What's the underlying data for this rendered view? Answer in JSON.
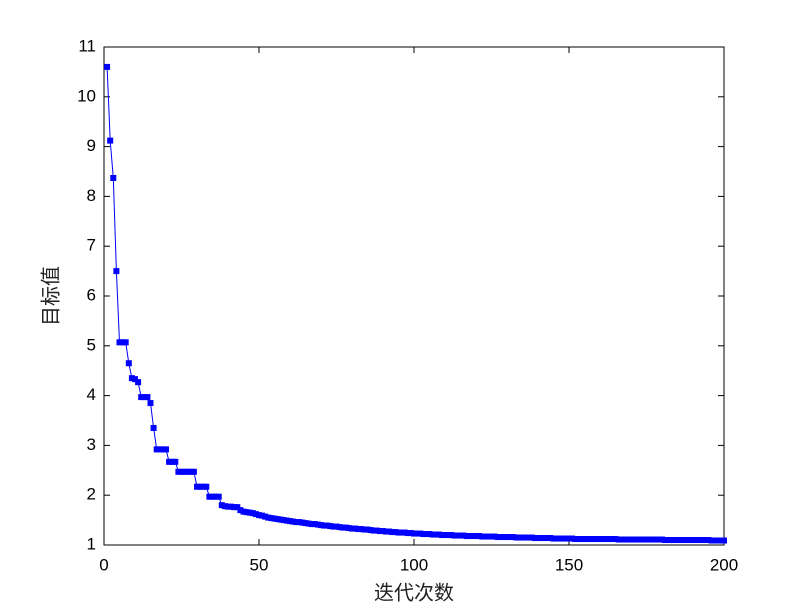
{
  "chart_data": {
    "type": "line",
    "xlabel": "迭代次数",
    "ylabel": "目标值",
    "color": "#0000ff",
    "x": [
      1,
      2,
      3,
      4,
      5,
      6,
      7,
      8,
      9,
      10,
      11,
      12,
      13,
      14,
      15,
      16,
      17,
      18,
      19,
      20,
      21,
      22,
      23,
      24,
      25,
      26,
      27,
      28,
      29,
      30,
      31,
      32,
      33,
      34,
      35,
      36,
      37,
      38,
      39,
      40,
      41,
      42,
      43,
      44,
      45,
      46,
      47,
      48,
      49,
      50,
      51,
      52,
      53,
      54,
      55,
      56,
      57,
      58,
      59,
      60,
      61,
      62,
      63,
      64,
      65,
      66,
      67,
      68,
      69,
      70,
      71,
      72,
      73,
      74,
      75,
      76,
      77,
      78,
      79,
      80,
      81,
      82,
      83,
      84,
      85,
      86,
      87,
      88,
      89,
      90,
      91,
      92,
      93,
      94,
      95,
      96,
      97,
      98,
      99,
      100,
      101,
      102,
      103,
      104,
      105,
      106,
      107,
      108,
      109,
      110,
      111,
      112,
      113,
      114,
      115,
      116,
      117,
      118,
      119,
      120,
      121,
      122,
      123,
      124,
      125,
      126,
      127,
      128,
      129,
      130,
      131,
      132,
      133,
      134,
      135,
      136,
      137,
      138,
      139,
      140,
      141,
      142,
      143,
      144,
      145,
      146,
      147,
      148,
      149,
      150,
      151,
      152,
      153,
      154,
      155,
      156,
      157,
      158,
      159,
      160,
      161,
      162,
      163,
      164,
      165,
      166,
      167,
      168,
      169,
      170,
      171,
      172,
      173,
      174,
      175,
      176,
      177,
      178,
      179,
      180,
      181,
      182,
      183,
      184,
      185,
      186,
      187,
      188,
      189,
      190,
      191,
      192,
      193,
      194,
      195,
      196,
      197,
      198,
      199,
      200
    ],
    "values": [
      10.6,
      9.12,
      8.37,
      6.5,
      5.07,
      5.07,
      5.07,
      4.65,
      4.35,
      4.33,
      4.27,
      3.97,
      3.97,
      3.97,
      3.85,
      3.35,
      2.92,
      2.92,
      2.92,
      2.92,
      2.67,
      2.67,
      2.67,
      2.47,
      2.47,
      2.47,
      2.47,
      2.47,
      2.47,
      2.17,
      2.17,
      2.17,
      2.17,
      1.97,
      1.97,
      1.97,
      1.97,
      1.8,
      1.78,
      1.77,
      1.77,
      1.76,
      1.76,
      1.7,
      1.67,
      1.66,
      1.65,
      1.64,
      1.62,
      1.6,
      1.59,
      1.57,
      1.55,
      1.54,
      1.53,
      1.52,
      1.51,
      1.5,
      1.49,
      1.48,
      1.47,
      1.46,
      1.46,
      1.45,
      1.44,
      1.43,
      1.42,
      1.42,
      1.41,
      1.4,
      1.39,
      1.39,
      1.38,
      1.37,
      1.37,
      1.36,
      1.35,
      1.35,
      1.34,
      1.33,
      1.33,
      1.32,
      1.32,
      1.31,
      1.31,
      1.3,
      1.29,
      1.29,
      1.28,
      1.28,
      1.27,
      1.27,
      1.26,
      1.26,
      1.25,
      1.25,
      1.25,
      1.24,
      1.24,
      1.23,
      1.23,
      1.23,
      1.22,
      1.22,
      1.22,
      1.21,
      1.21,
      1.21,
      1.2,
      1.2,
      1.2,
      1.2,
      1.19,
      1.19,
      1.19,
      1.19,
      1.18,
      1.18,
      1.18,
      1.18,
      1.18,
      1.17,
      1.17,
      1.17,
      1.17,
      1.17,
      1.16,
      1.16,
      1.16,
      1.16,
      1.16,
      1.16,
      1.15,
      1.15,
      1.15,
      1.15,
      1.15,
      1.15,
      1.14,
      1.14,
      1.14,
      1.14,
      1.14,
      1.14,
      1.13,
      1.13,
      1.13,
      1.13,
      1.13,
      1.13,
      1.13,
      1.12,
      1.12,
      1.12,
      1.12,
      1.12,
      1.12,
      1.12,
      1.12,
      1.12,
      1.12,
      1.12,
      1.12,
      1.12,
      1.12,
      1.11,
      1.11,
      1.11,
      1.11,
      1.11,
      1.11,
      1.11,
      1.11,
      1.11,
      1.11,
      1.11,
      1.11,
      1.11,
      1.11,
      1.11,
      1.1,
      1.1,
      1.1,
      1.1,
      1.1,
      1.1,
      1.1,
      1.1,
      1.1,
      1.1,
      1.1,
      1.1,
      1.1,
      1.1,
      1.1,
      1.09,
      1.09,
      1.09,
      1.09,
      1.09
    ],
    "xlim": [
      0,
      200
    ],
    "xticks": [
      0,
      50,
      100,
      150,
      200
    ],
    "ylim": [
      1,
      11
    ],
    "yticks": [
      1,
      2,
      3,
      4,
      5,
      6,
      7,
      8,
      9,
      10,
      11
    ]
  }
}
